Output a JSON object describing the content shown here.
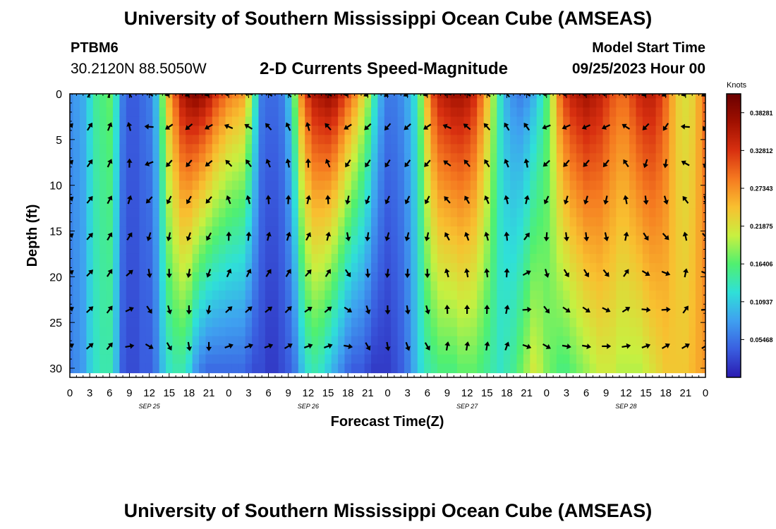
{
  "header": {
    "title": "University of Southern Mississippi Ocean Cube (AMSEAS)",
    "station": "PTBM6",
    "coordinates": "30.2120N  88.5050W",
    "subtitle": "2-D Currents Speed-Magnitude",
    "model_start_label": "Model Start Time",
    "model_start_value": "09/25/2023 Hour 00"
  },
  "footer": {
    "title": "University of Southern Mississippi Ocean Cube (AMSEAS)"
  },
  "chart_data": {
    "type": "heatmap",
    "title": "2-D Currents Speed-Magnitude",
    "xlabel": "Forecast Time(Z)",
    "ylabel": "Depth (ft)",
    "xlim": [
      0,
      96
    ],
    "ylim": [
      0,
      31
    ],
    "x_ticks": [
      0,
      3,
      6,
      9,
      12,
      15,
      18,
      21,
      24,
      27,
      30,
      33,
      36,
      39,
      42,
      45,
      48,
      51,
      54,
      57,
      60,
      63,
      66,
      69,
      72,
      75,
      78,
      81,
      84,
      87,
      90,
      93,
      96
    ],
    "x_tick_labels": [
      "0",
      "3",
      "6",
      "9",
      "12",
      "15",
      "18",
      "21",
      "0",
      "3",
      "6",
      "9",
      "12",
      "15",
      "18",
      "21",
      "0",
      "3",
      "6",
      "9",
      "12",
      "15",
      "18",
      "21",
      "0",
      "3",
      "6",
      "9",
      "12",
      "15",
      "18",
      "21",
      "0"
    ],
    "date_labels": [
      {
        "label": "SEP 25",
        "hour": 12
      },
      {
        "label": "SEP 26",
        "hour": 36
      },
      {
        "label": "SEP 27",
        "hour": 60
      },
      {
        "label": "SEP 28",
        "hour": 84
      }
    ],
    "y_ticks": [
      0,
      5,
      10,
      15,
      20,
      25,
      30
    ],
    "y_tick_labels": [
      "0",
      "5",
      "10",
      "15",
      "20",
      "25",
      "30"
    ],
    "colorbar": {
      "unit": "Knots",
      "vmin": 0,
      "vmax": 0.4101,
      "ticks": [
        0.05468,
        0.10937,
        0.16406,
        0.21875,
        0.27343,
        0.32812,
        0.38281
      ],
      "tick_labels": [
        "0.05468",
        "0.10937",
        "0.16406",
        "0.21875",
        "0.27343",
        "0.32812",
        "0.38281"
      ],
      "colors": [
        "#2a1ab0",
        "#3a5fe0",
        "#3fa0f0",
        "#2fe0d8",
        "#50f070",
        "#c8f040",
        "#f8c030",
        "#f57a20",
        "#d83010",
        "#a01000",
        "#6a0000"
      ]
    },
    "speed_profile": {
      "hours": [
        0,
        1,
        2,
        3,
        4,
        5,
        6,
        7,
        8,
        9,
        10,
        11,
        12,
        13,
        14,
        15,
        16,
        17,
        18,
        19,
        20,
        21,
        22,
        23,
        24,
        25,
        26,
        27,
        28,
        29,
        30,
        31,
        32,
        33,
        34,
        35,
        36,
        37,
        38,
        39,
        40,
        41,
        42,
        43,
        44,
        45,
        46,
        47,
        48,
        49,
        50,
        51,
        52,
        53,
        54,
        55,
        56,
        57,
        58,
        59,
        60,
        61,
        62,
        63,
        64,
        65,
        66,
        67,
        68,
        69,
        70,
        71,
        72,
        73,
        74,
        75,
        76,
        77,
        78,
        79,
        80,
        81,
        82,
        83,
        84,
        85,
        86,
        87,
        88,
        89,
        90,
        91,
        92,
        93,
        94,
        95,
        96
      ],
      "surface": [
        0.07,
        0.08,
        0.09,
        0.12,
        0.15,
        0.16,
        0.17,
        0.13,
        0.06,
        0.04,
        0.04,
        0.05,
        0.06,
        0.1,
        0.18,
        0.26,
        0.31,
        0.36,
        0.38,
        0.39,
        0.38,
        0.36,
        0.33,
        0.31,
        0.29,
        0.28,
        0.27,
        0.22,
        0.14,
        0.06,
        0.05,
        0.05,
        0.06,
        0.1,
        0.18,
        0.28,
        0.33,
        0.36,
        0.37,
        0.38,
        0.37,
        0.34,
        0.31,
        0.28,
        0.24,
        0.2,
        0.14,
        0.09,
        0.06,
        0.06,
        0.07,
        0.09,
        0.12,
        0.18,
        0.26,
        0.32,
        0.35,
        0.36,
        0.37,
        0.37,
        0.36,
        0.34,
        0.3,
        0.25,
        0.19,
        0.13,
        0.09,
        0.07,
        0.06,
        0.07,
        0.09,
        0.12,
        0.16,
        0.22,
        0.29,
        0.33,
        0.35,
        0.36,
        0.37,
        0.36,
        0.35,
        0.33,
        0.31,
        0.3,
        0.3,
        0.32,
        0.34,
        0.35,
        0.35,
        0.33,
        0.3,
        0.26,
        0.23,
        0.22,
        0.23,
        0.26,
        0.3
      ],
      "bottom": [
        0.06,
        0.07,
        0.08,
        0.11,
        0.13,
        0.14,
        0.14,
        0.1,
        0.04,
        0.03,
        0.03,
        0.04,
        0.04,
        0.06,
        0.1,
        0.13,
        0.14,
        0.14,
        0.12,
        0.08,
        0.06,
        0.05,
        0.05,
        0.05,
        0.05,
        0.05,
        0.05,
        0.04,
        0.03,
        0.03,
        0.02,
        0.02,
        0.03,
        0.04,
        0.06,
        0.1,
        0.13,
        0.14,
        0.13,
        0.11,
        0.09,
        0.07,
        0.05,
        0.04,
        0.04,
        0.03,
        0.02,
        0.02,
        0.02,
        0.03,
        0.04,
        0.06,
        0.09,
        0.12,
        0.14,
        0.15,
        0.16,
        0.16,
        0.16,
        0.17,
        0.17,
        0.17,
        0.16,
        0.15,
        0.14,
        0.13,
        0.14,
        0.15,
        0.17,
        0.19,
        0.21,
        0.2,
        0.18,
        0.17,
        0.16,
        0.16,
        0.17,
        0.18,
        0.19,
        0.2,
        0.21,
        0.21,
        0.21,
        0.2,
        0.2,
        0.2,
        0.2,
        0.21,
        0.22,
        0.23,
        0.24,
        0.24,
        0.24,
        0.24,
        0.25,
        0.26,
        0.27
      ]
    },
    "direction_profile_deg": {
      "hours": [
        0,
        3,
        6,
        9,
        12,
        15,
        18,
        21,
        24,
        27,
        30,
        33,
        36,
        39,
        42,
        45,
        48,
        51,
        54,
        57,
        60,
        63,
        66,
        69,
        72,
        75,
        78,
        81,
        84,
        87,
        90,
        93,
        96
      ],
      "surface": [
        40,
        30,
        20,
        330,
        300,
        250,
        240,
        250,
        270,
        280,
        300,
        320,
        330,
        300,
        260,
        240,
        230,
        240,
        250,
        280,
        300,
        310,
        320,
        300,
        270,
        270,
        270,
        270,
        280,
        250,
        240,
        250,
        240
      ],
      "bottom": [
        60,
        50,
        40,
        80,
        120,
        150,
        170,
        180,
        70,
        70,
        70,
        60,
        70,
        70,
        100,
        150,
        170,
        160,
        150,
        10,
        10,
        10,
        20,
        110,
        120,
        100,
        100,
        90,
        80,
        70,
        60,
        60,
        60
      ]
    }
  }
}
